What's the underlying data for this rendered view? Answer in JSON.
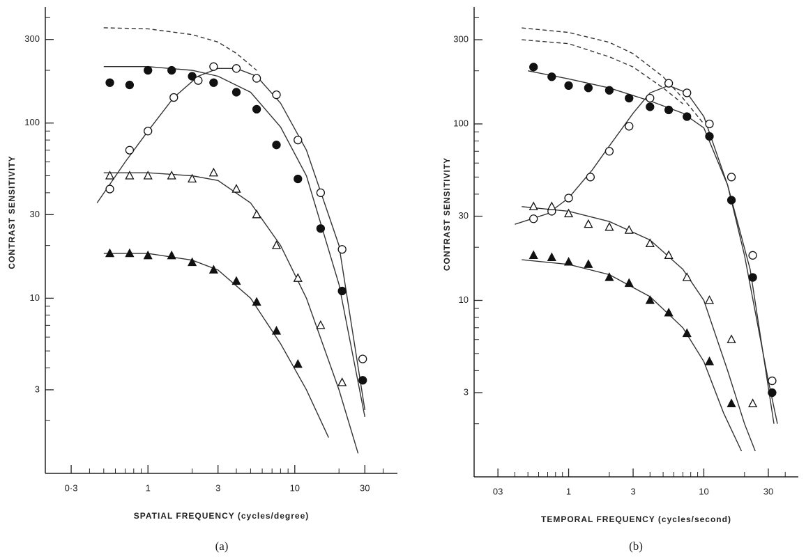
{
  "chart_data": [
    {
      "type": "scatter",
      "x_label": "SPATIAL FREQUENCY (cycles/degree)",
      "y_label": "CONTRAST SENSITIVITY",
      "caption": "(a)",
      "xlog": true,
      "ylog": true,
      "xlim": [
        0.2,
        50
      ],
      "ylim": [
        1,
        460
      ],
      "xticks": [
        {
          "value": 0.3,
          "label": "0·3"
        },
        1,
        3,
        10,
        30
      ],
      "yticks": [
        3,
        10,
        30,
        100,
        300
      ],
      "xminor": [
        0.4,
        0.5,
        0.6,
        0.7,
        0.8,
        0.9,
        2,
        4,
        5,
        6,
        7,
        8,
        9,
        20,
        40
      ],
      "yminor": [
        2,
        4,
        5,
        6,
        7,
        8,
        9,
        20,
        40,
        50,
        60,
        70,
        80,
        90,
        200,
        400
      ],
      "series": [
        {
          "marker": "filled-circle",
          "x": [
            0.55,
            0.75,
            1,
            1.45,
            2,
            2.8,
            4,
            5.5,
            7.5,
            10.5,
            15,
            21,
            29
          ],
          "values": [
            170,
            165,
            200,
            200,
            185,
            170,
            150,
            120,
            75,
            48,
            25,
            11,
            3.4
          ]
        },
        {
          "marker": "open-circle",
          "x": [
            0.55,
            0.75,
            1,
            1.5,
            2.2,
            2.8,
            4,
            5.5,
            7.5,
            10.5,
            15,
            21,
            29
          ],
          "values": [
            42,
            70,
            90,
            140,
            175,
            210,
            205,
            180,
            145,
            80,
            40,
            19,
            4.5
          ]
        },
        {
          "marker": "open-triangle",
          "x": [
            0.55,
            0.75,
            1,
            1.45,
            2,
            2.8,
            4,
            5.5,
            7.5,
            10.5,
            15,
            21
          ],
          "values": [
            50,
            50,
            50,
            50,
            48,
            52,
            42,
            30,
            20,
            13,
            7,
            3.3
          ]
        },
        {
          "marker": "filled-triangle",
          "x": [
            0.55,
            0.75,
            1,
            1.45,
            2,
            2.8,
            4,
            5.5,
            7.5,
            10.5
          ],
          "values": [
            18,
            18,
            17.5,
            17.5,
            16,
            14.5,
            12.5,
            9.5,
            6.5,
            4.2
          ]
        }
      ],
      "curves": [
        {
          "dashed": false,
          "x": [
            0.5,
            1,
            2,
            3,
            5,
            8,
            12,
            20,
            30
          ],
          "values": [
            210,
            210,
            200,
            185,
            150,
            95,
            50,
            12,
            2.1
          ]
        },
        {
          "dashed": false,
          "x": [
            0.45,
            0.7,
            1,
            1.5,
            2.2,
            3,
            4,
            5.5,
            8,
            12,
            20,
            30
          ],
          "values": [
            35,
            60,
            90,
            140,
            185,
            205,
            205,
            185,
            130,
            70,
            20,
            2.3
          ]
        },
        {
          "dashed": false,
          "x": [
            0.5,
            1,
            2,
            3,
            5,
            8,
            12,
            20,
            27
          ],
          "values": [
            52,
            52,
            50,
            47,
            35,
            20,
            10,
            3,
            1.3
          ]
        },
        {
          "dashed": false,
          "x": [
            0.5,
            1,
            2,
            3,
            5,
            8,
            12,
            17
          ],
          "values": [
            18,
            18,
            16.5,
            14.5,
            10,
            5.5,
            3,
            1.6
          ]
        },
        {
          "dashed": true,
          "x": [
            0.5,
            1,
            2,
            3,
            4,
            5.5
          ],
          "values": [
            350,
            345,
            320,
            290,
            250,
            200
          ]
        }
      ]
    },
    {
      "type": "scatter",
      "x_label": "TEMPORAL FREQUENCY (cycles/second)",
      "y_label": "CONTRAST SENSITIVITY",
      "caption": "(b)",
      "xlog": true,
      "ylog": true,
      "xlim": [
        0.2,
        50
      ],
      "ylim": [
        1,
        460
      ],
      "xticks": [
        {
          "value": 0.3,
          "label": "03"
        },
        1,
        3,
        10,
        30
      ],
      "yticks": [
        3,
        10,
        30,
        100,
        300
      ],
      "xminor": [
        0.4,
        0.5,
        0.6,
        0.7,
        0.8,
        0.9,
        2,
        4,
        5,
        6,
        7,
        8,
        9,
        20,
        40
      ],
      "yminor": [
        2,
        4,
        5,
        6,
        7,
        8,
        9,
        20,
        40,
        50,
        60,
        70,
        80,
        90,
        200,
        400
      ],
      "series": [
        {
          "marker": "filled-circle",
          "x": [
            0.55,
            0.75,
            1,
            1.4,
            2,
            2.8,
            4,
            5.5,
            7.5,
            11,
            16,
            23,
            32
          ],
          "values": [
            210,
            185,
            165,
            160,
            155,
            140,
            125,
            120,
            110,
            85,
            37,
            13.5,
            3
          ]
        },
        {
          "marker": "open-circle",
          "x": [
            0.55,
            0.75,
            1,
            1.45,
            2,
            2.8,
            4,
            5.5,
            7.5,
            11,
            16,
            23,
            32
          ],
          "values": [
            29,
            32,
            38,
            50,
            70,
            97,
            140,
            170,
            150,
            100,
            50,
            18,
            3.5
          ]
        },
        {
          "marker": "open-triangle",
          "x": [
            0.55,
            0.75,
            1,
            1.4,
            2,
            2.8,
            4,
            5.5,
            7.5,
            11,
            16,
            23
          ],
          "values": [
            34,
            34,
            31,
            27,
            26,
            25,
            21,
            18,
            13.5,
            10,
            6,
            2.6
          ]
        },
        {
          "marker": "filled-triangle",
          "x": [
            0.55,
            0.75,
            1,
            1.4,
            2,
            2.8,
            4,
            5.5,
            7.5,
            11,
            16
          ],
          "values": [
            18,
            17.5,
            16.5,
            16,
            13.5,
            12.5,
            10,
            8.5,
            6.5,
            4.5,
            2.6
          ]
        }
      ],
      "curves": [
        {
          "dashed": false,
          "x": [
            0.5,
            1,
            2,
            4,
            7,
            10,
            15,
            20,
            30,
            35
          ],
          "values": [
            200,
            180,
            160,
            135,
            115,
            95,
            45,
            18,
            3.5,
            2
          ]
        },
        {
          "dashed": false,
          "x": [
            0.4,
            0.7,
            1,
            1.5,
            2,
            3,
            4,
            5.5,
            7.5,
            10,
            15,
            22,
            33
          ],
          "values": [
            27,
            31,
            38,
            55,
            75,
            115,
            150,
            165,
            150,
            110,
            45,
            15,
            2
          ]
        },
        {
          "dashed": false,
          "x": [
            0.45,
            1,
            2,
            4,
            7,
            10,
            15,
            20,
            24
          ],
          "values": [
            34,
            32,
            28,
            22,
            15,
            10,
            4,
            2,
            1.4
          ]
        },
        {
          "dashed": false,
          "x": [
            0.45,
            1,
            2,
            4,
            7,
            10,
            14,
            19
          ],
          "values": [
            17,
            16,
            14,
            10.5,
            7,
            4.5,
            2.3,
            1.4
          ]
        },
        {
          "dashed": true,
          "x": [
            0.45,
            1,
            2,
            3,
            5,
            7,
            10
          ],
          "values": [
            350,
            330,
            290,
            250,
            185,
            140,
            100
          ]
        },
        {
          "dashed": true,
          "x": [
            0.45,
            1,
            2,
            3,
            5,
            7
          ],
          "values": [
            300,
            285,
            240,
            210,
            160,
            130
          ]
        }
      ]
    }
  ]
}
